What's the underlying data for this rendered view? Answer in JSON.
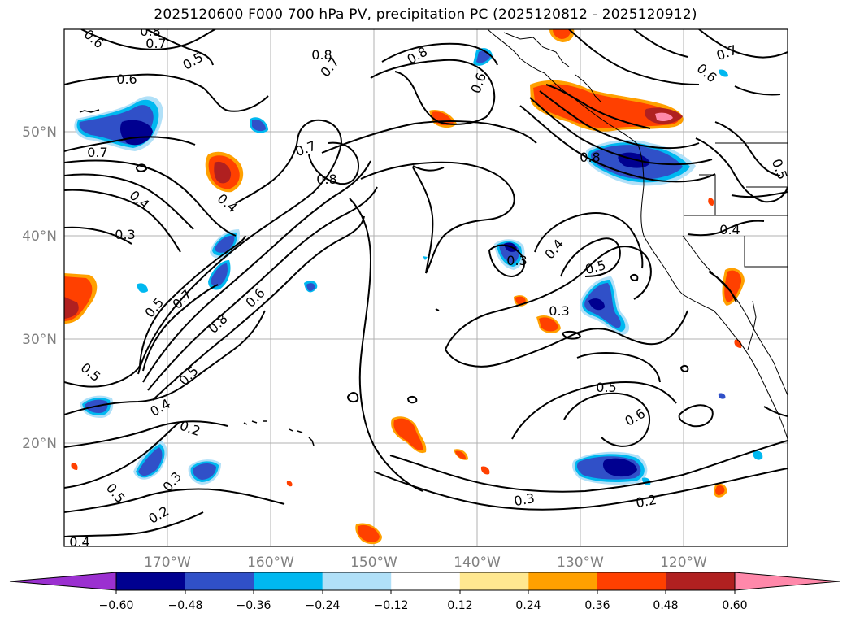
{
  "title": "2025120600 F000 700 hPa PV, precipitation PC (2025120812 - 2025120912)",
  "map": {
    "lat_labels": [
      "50°N",
      "40°N",
      "30°N",
      "20°N"
    ],
    "lon_labels": [
      "170°W",
      "160°W",
      "150°W",
      "140°W",
      "130°W",
      "120°W"
    ],
    "contour_labels": [
      "0.8",
      "0.7",
      "0.5",
      "0.6",
      "0.7",
      "0.6",
      "0.8",
      "0.7",
      "0.8",
      "0.7",
      "0.5",
      "0.6",
      "0.7",
      "0.8",
      "0.8",
      "0.4",
      "0.4",
      "0.3",
      "0.4",
      "0.3",
      "0.5",
      "0.5",
      "0.7",
      "0.6",
      "0.8",
      "0.3",
      "0.4",
      "0.4",
      "0.5",
      "0.2",
      "0.3",
      "0.5",
      "0.2",
      "0.4",
      "0.5",
      "0.6",
      "0.3",
      "0.2",
      "0.6",
      "0.5"
    ]
  },
  "colorbar": {
    "ticks": [
      "−0.60",
      "−0.48",
      "−0.36",
      "−0.24",
      "−0.12",
      "0.12",
      "0.24",
      "0.36",
      "0.48",
      "0.60"
    ],
    "colors": [
      "#9b30d0",
      "#000090",
      "#3050c8",
      "#00b8f0",
      "#b0e0f8",
      "#ffffff",
      "#ffe890",
      "#ffa000",
      "#ff4000",
      "#b02020",
      "#ff88aa",
      "#ff88aa"
    ]
  }
}
